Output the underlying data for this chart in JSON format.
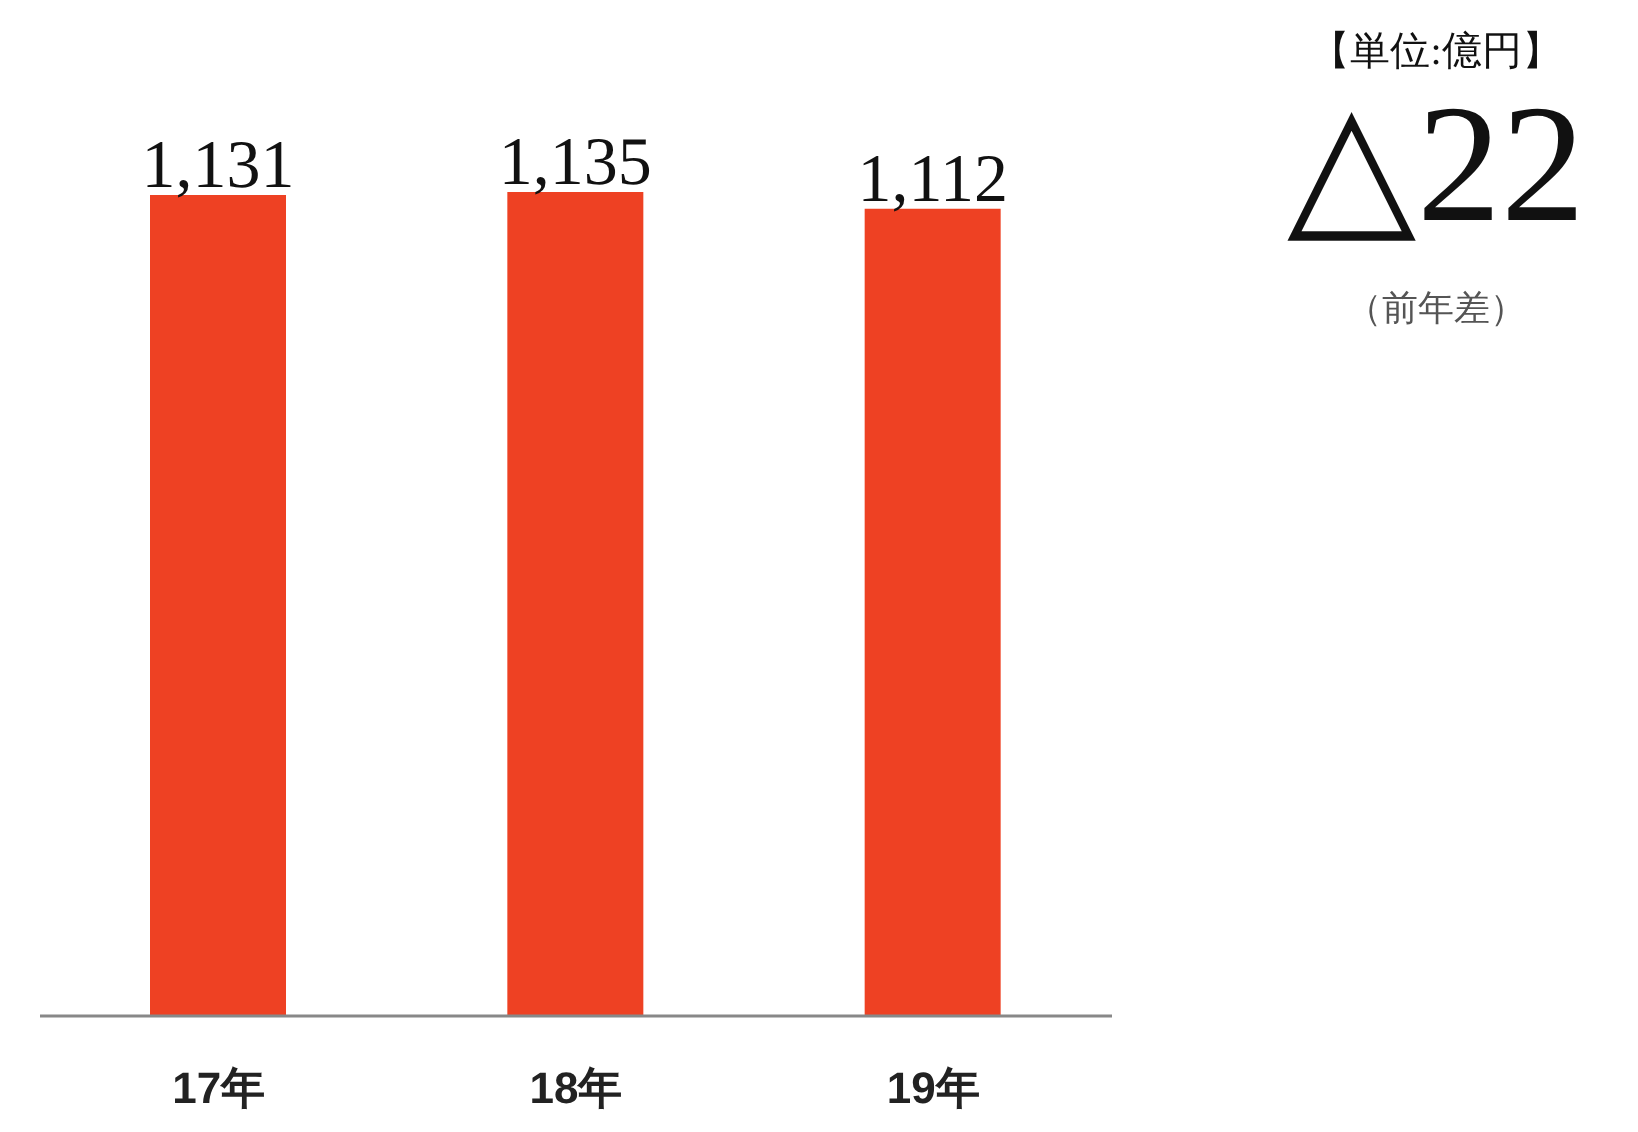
{
  "chart_data": {
    "type": "bar",
    "categories": [
      "17年",
      "18年",
      "19年"
    ],
    "values": [
      1131,
      1135,
      1112
    ],
    "value_labels": [
      "1,131",
      "1,135",
      "1,112"
    ],
    "colors": [
      "#ee4123",
      "#ee4123",
      "#ee4123"
    ],
    "tick_labels": "x",
    "annotations": [
      "【単位:億円】",
      "△22",
      "（前年差）"
    ]
  }
}
